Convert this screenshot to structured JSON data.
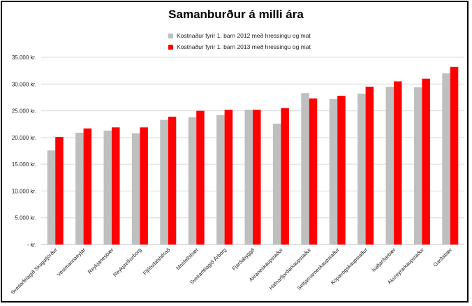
{
  "chart_data": {
    "type": "bar",
    "title": "Samanburður á milli ára",
    "categories": [
      "Sveitarfélagið Skagafjörður",
      "Vestmannaeyjar",
      "Reykjanesbær",
      "Reykjavíkurborg",
      "Fljótsdalshérað",
      "Mosfellsbær",
      "Sveitarfélagið Árborg",
      "Fjarðabyggð",
      "Akraneskaupstaður",
      "Hafnarfjarðarkaupstaður",
      "Seltjarnarneskaupstaður",
      "Kópavogskaupstaður",
      "Ísafjarðarbær",
      "Akureyrarkaupstaður",
      "Garðabær"
    ],
    "series": [
      {
        "name": "Kostnaður fyrir 1. barn 2012 með hressingu og mat",
        "color": "#bfbfbf",
        "values": [
          17600,
          20900,
          21300,
          20800,
          23300,
          23800,
          24200,
          25200,
          22600,
          28300,
          27200,
          28200,
          29500,
          29400,
          32000
        ]
      },
      {
        "name": "Kostnaður fyrir 1. barn 2013 með hressingu og mat",
        "color": "#ff0000",
        "values": [
          20100,
          21700,
          21900,
          21900,
          23900,
          25000,
          25200,
          25200,
          25500,
          27300,
          27800,
          29500,
          30500,
          31000,
          33200
        ]
      }
    ],
    "ylim": [
      0,
      35000
    ],
    "yticks": [
      0,
      5000,
      10000,
      15000,
      20000,
      25000,
      30000,
      35000
    ],
    "ytick_labels": [
      "-   kr.",
      "5.000 kr.",
      "10.000 kr.",
      "15.000 kr.",
      "20.000 kr.",
      "25.000 kr.",
      "30.000 kr.",
      "35.000 kr."
    ],
    "xlabel": "",
    "ylabel": "",
    "grid": true,
    "legend_position": "top-center"
  }
}
